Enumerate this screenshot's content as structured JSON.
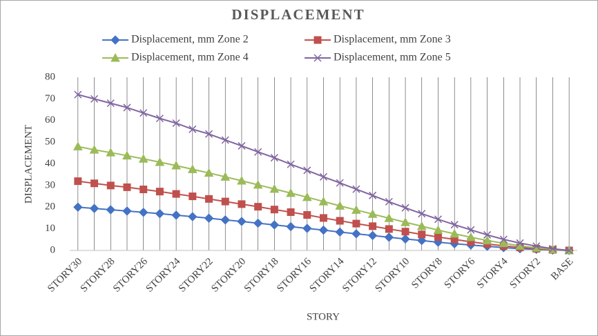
{
  "chart_data": {
    "type": "line",
    "title": "DISPLACEMENT",
    "x_label": "STORY",
    "y_label": "DISPLACEMENT",
    "categories": [
      "STORY30",
      null,
      "STORY28",
      null,
      "STORY26",
      null,
      "STORY24",
      null,
      "STORY22",
      null,
      "STORY20",
      null,
      "STORY18",
      null,
      "STORY16",
      null,
      "STORY14",
      null,
      "STORY12",
      null,
      "STORY10",
      null,
      "STORY8",
      null,
      "STORY6",
      null,
      "STORY4",
      null,
      "STORY2",
      null,
      "BASE"
    ],
    "series": [
      {
        "name": "Displacement, mm Zone 2",
        "color": "#4472c4",
        "marker": "diamond",
        "values": [
          20,
          19.4,
          18.8,
          18.2,
          17.6,
          17,
          16.3,
          15.6,
          14.9,
          14.1,
          13.4,
          12.6,
          11.8,
          11,
          10.2,
          9.4,
          8.5,
          7.7,
          6.9,
          6.1,
          5.3,
          4.6,
          3.8,
          3.1,
          2.5,
          1.9,
          1.3,
          0.8,
          0.5,
          0.2,
          0
        ]
      },
      {
        "name": "Displacement, mm Zone 3",
        "color": "#c0504d",
        "marker": "square",
        "values": [
          32,
          31,
          30,
          29.2,
          28.2,
          27.2,
          26.1,
          25,
          23.8,
          22.6,
          21.4,
          20.2,
          18.9,
          17.7,
          16.4,
          15,
          13.7,
          12.4,
          11.2,
          9.9,
          8.7,
          7.4,
          6.2,
          5.1,
          4,
          3,
          2.1,
          1.4,
          0.8,
          0.3,
          0
        ]
      },
      {
        "name": "Displacement, mm Zone 4",
        "color": "#9bbb59",
        "marker": "triangle",
        "values": [
          48,
          46.5,
          45.2,
          43.8,
          42.3,
          40.8,
          39.2,
          37.5,
          35.8,
          34,
          32.2,
          30.3,
          28.4,
          26.5,
          24.6,
          22.6,
          20.6,
          18.7,
          16.8,
          14.9,
          13,
          11.2,
          9.4,
          7.7,
          6.1,
          4.6,
          3.3,
          2.1,
          1.2,
          0.5,
          0
        ]
      },
      {
        "name": "Displacement, mm Zone 5",
        "color": "#8064a2",
        "marker": "x",
        "values": [
          72,
          70,
          68,
          66,
          63.5,
          61,
          58.8,
          56,
          53.8,
          51,
          48.3,
          45.5,
          42.8,
          39.8,
          37,
          34,
          31.2,
          28.3,
          25.4,
          22.5,
          19.7,
          17,
          14.4,
          11.9,
          9.5,
          7.2,
          5.1,
          3.4,
          2,
          0.8,
          0
        ]
      }
    ],
    "ylim": [
      0,
      80
    ],
    "yticks": [
      0,
      10,
      20,
      30,
      40,
      50,
      60,
      70,
      80
    ],
    "xgrid": true
  }
}
